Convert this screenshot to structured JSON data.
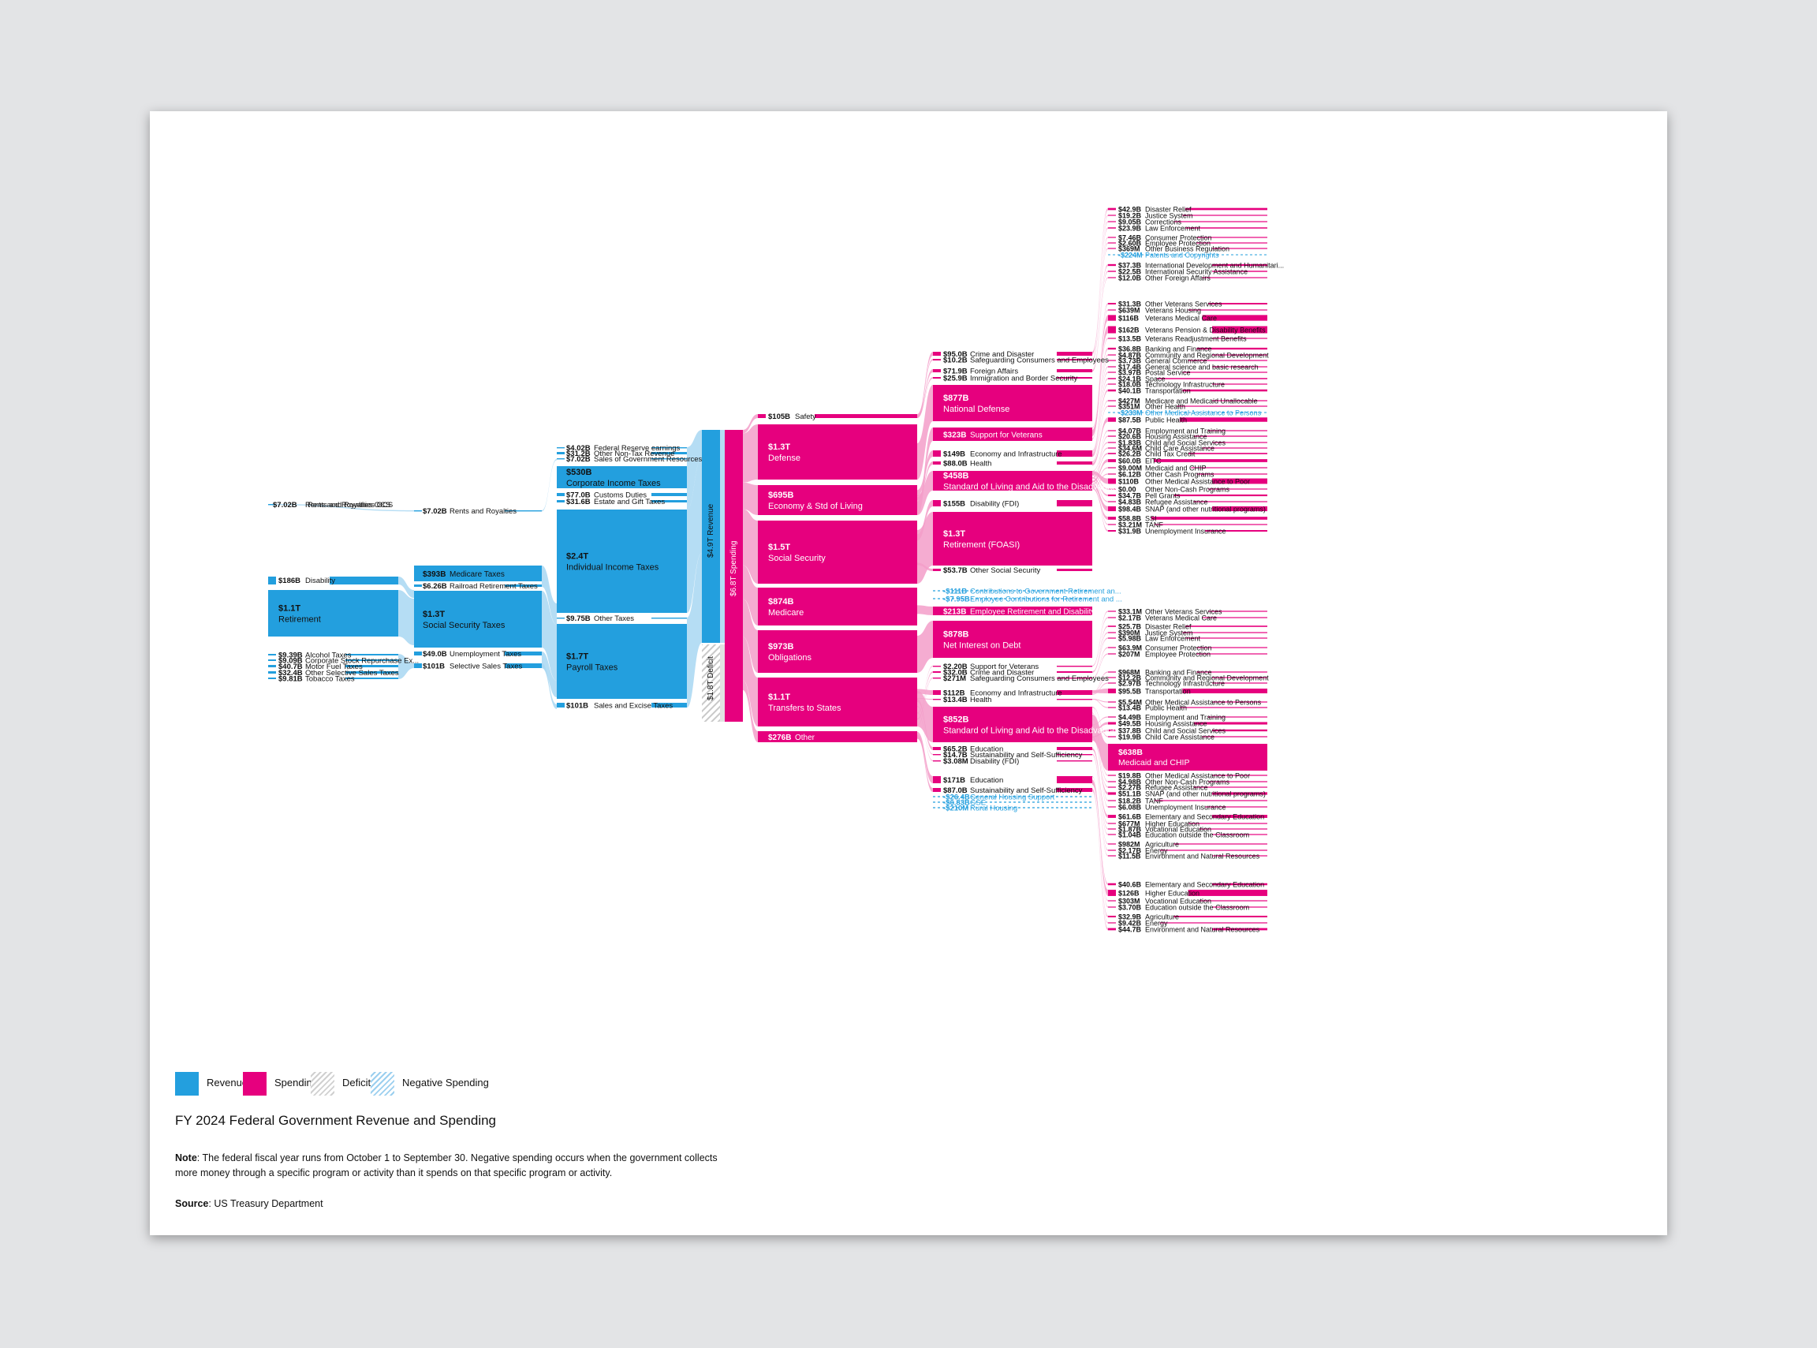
{
  "title": "FY 2024 Federal Government Revenue and Spending",
  "note_label": "Note",
  "note_text": ": The federal fiscal year runs from October 1 to September 30. Negative spending occurs when the government collects more money through a specific program or activity than it spends on that specific program or activity.",
  "source_label": "Source",
  "source_text": ": US Treasury Department",
  "legend": [
    {
      "label": "Revenue",
      "type": "rev"
    },
    {
      "label": "Spending",
      "type": "spend"
    },
    {
      "label": "Deficit",
      "type": "def"
    },
    {
      "label": "Negative Spending",
      "type": "neg"
    }
  ],
  "colors": {
    "revenue": "#239fde",
    "spending": "#e6007e",
    "revenue_flow": "#a8d7f2",
    "spending_flow": "#f39dc9",
    "deficit": "#cccccc",
    "negative": "#239fde"
  },
  "revenue": {
    "col0": [
      {
        "value": "$7.02B",
        "label": "Rents and Royalties OCS"
      },
      {
        "value": "$186B",
        "label": "Disability"
      },
      {
        "value": "$1.1T",
        "label": "Retirement"
      },
      {
        "value": "$9.39B",
        "label": "Alcohol Taxes"
      },
      {
        "value": "$9.09B",
        "label": "Corporate Stock Repurchase Ex..."
      },
      {
        "value": "$40.7B",
        "label": "Motor Fuel Taxes"
      },
      {
        "value": "$32.4B",
        "label": "Other Selective Sales Taxes"
      },
      {
        "value": "$9.81B",
        "label": "Tobacco Taxes"
      }
    ],
    "col1": [
      {
        "value": "$7.02B",
        "label": "Rents and Royalties"
      },
      {
        "value": "$393B",
        "label": "Medicare Taxes"
      },
      {
        "value": "$6.26B",
        "label": "Railroad Retirement Taxes"
      },
      {
        "value": "$1.3T",
        "label": "Social Security Taxes"
      },
      {
        "value": "$49.0B",
        "label": "Unemployment Taxes"
      },
      {
        "value": "$101B",
        "label": "Selective Sales Taxes"
      }
    ],
    "col2": [
      {
        "value": "$4.02B",
        "label": "Federal Reserve earnings"
      },
      {
        "value": "$31.2B",
        "label": "Other Non-Tax Revenue"
      },
      {
        "value": "$7.02B",
        "label": "Sales of Government Resources"
      },
      {
        "value": "$530B",
        "label": "Corporate Income Taxes"
      },
      {
        "value": "$77.0B",
        "label": "Customs Duties"
      },
      {
        "value": "$31.6B",
        "label": "Estate and Gift Taxes"
      },
      {
        "value": "$2.4T",
        "label": "Individual Income Taxes"
      },
      {
        "value": "$9.75B",
        "label": "Other Taxes"
      },
      {
        "value": "$1.7T",
        "label": "Payroll Taxes"
      },
      {
        "value": "$101B",
        "label": "Sales and Excise Taxes"
      }
    ],
    "total": "$4.9T Revenue",
    "deficit": "$1.8T Deficit",
    "spending_total": "$6.8T Spending"
  },
  "spending": {
    "col4": [
      {
        "value": "$105B",
        "label": "Safety"
      },
      {
        "value": "$1.3T",
        "label": "Defense"
      },
      {
        "value": "$695B",
        "label": "Economy & Std of Living"
      },
      {
        "value": "$1.5T",
        "label": "Social Security"
      },
      {
        "value": "$874B",
        "label": "Medicare"
      },
      {
        "value": "$973B",
        "label": "Obligations"
      },
      {
        "value": "$1.1T",
        "label": "Transfers to States"
      },
      {
        "value": "$276B",
        "label": "Other"
      }
    ],
    "col5": [
      {
        "value": "$95.0B",
        "label": "Crime and Disaster"
      },
      {
        "value": "$10.2B",
        "label": "Safeguarding Consumers and Employees"
      },
      {
        "value": "$71.9B",
        "label": "Foreign Affairs"
      },
      {
        "value": "$25.9B",
        "label": "Immigration and Border Security"
      },
      {
        "value": "$877B",
        "label": "National Defense"
      },
      {
        "value": "$323B",
        "label": "Support for Veterans"
      },
      {
        "value": "$149B",
        "label": "Economy and Infrastructure"
      },
      {
        "value": "$88.0B",
        "label": "Health"
      },
      {
        "value": "$458B",
        "label": "Standard of Living and Aid to the Disadvantaged"
      },
      {
        "value": "$155B",
        "label": "Disability (FDI)"
      },
      {
        "value": "$1.3T",
        "label": "Retirement (FOASI)"
      },
      {
        "value": "$53.7B",
        "label": "Other Social Security"
      },
      {
        "value": "-$111B",
        "label": "Contributions to Government Retirement an...",
        "neg": true
      },
      {
        "value": "-$7.95B",
        "label": "Employee Contributions for Retirement and ...",
        "neg": true
      },
      {
        "value": "$213B",
        "label": "Employee Retirement and Disability..."
      },
      {
        "value": "$878B",
        "label": "Net Interest on Debt"
      },
      {
        "value": "$2.20B",
        "label": "Support for Veterans"
      },
      {
        "value": "$32.0B",
        "label": "Crime and Disaster"
      },
      {
        "value": "$271M",
        "label": "Safeguarding Consumers and Employees"
      },
      {
        "value": "$112B",
        "label": "Economy and Infrastructure"
      },
      {
        "value": "$13.4B",
        "label": "Health"
      },
      {
        "value": "$852B",
        "label": "Standard of Living and Aid to the Disadvantaged"
      },
      {
        "value": "$65.2B",
        "label": "Education"
      },
      {
        "value": "$14.7B",
        "label": "Sustainability and Self-Sufficiency"
      },
      {
        "value": "$3.08M",
        "label": "Disability (FDI)"
      },
      {
        "value": "$171B",
        "label": "Education"
      },
      {
        "value": "$87.0B",
        "label": "Sustainability and Self-Sufficiency"
      },
      {
        "value": "-$26.4B",
        "label": "General Housing Support",
        "neg": true
      },
      {
        "value": "-$6.83B",
        "label": "GSE",
        "neg": true
      },
      {
        "value": "-$210M",
        "label": "Rural Housing",
        "neg": true
      }
    ],
    "col6": [
      {
        "value": "$42.9B",
        "label": "Disaster Relief"
      },
      {
        "value": "$19.2B",
        "label": "Justice System"
      },
      {
        "value": "$9.05B",
        "label": "Corrections"
      },
      {
        "value": "$23.9B",
        "label": "Law Enforcement"
      },
      {
        "value": "$7.46B",
        "label": "Consumer Protection"
      },
      {
        "value": "$2.60B",
        "label": "Employee Protection"
      },
      {
        "value": "$369M",
        "label": "Other Business Regulation"
      },
      {
        "value": "-$224M",
        "label": "Patents and Copyrights",
        "neg": true
      },
      {
        "value": "$37.3B",
        "label": "International Development and Humanitari..."
      },
      {
        "value": "$22.5B",
        "label": "International Security Assistance"
      },
      {
        "value": "$12.0B",
        "label": "Other Foreign Affairs"
      },
      {
        "value": "$31.3B",
        "label": "Other Veterans Services"
      },
      {
        "value": "$639M",
        "label": "Veterans Housing"
      },
      {
        "value": "$116B",
        "label": "Veterans Medical Care"
      },
      {
        "value": "$162B",
        "label": "Veterans Pension & Disability Benefits"
      },
      {
        "value": "$13.5B",
        "label": "Veterans Readjustment Benefits"
      },
      {
        "value": "$36.8B",
        "label": "Banking and Finance"
      },
      {
        "value": "$4.87B",
        "label": "Community and Regional Development"
      },
      {
        "value": "$3.73B",
        "label": "General Commerce"
      },
      {
        "value": "$17.4B",
        "label": "General science and basic research"
      },
      {
        "value": "$3.97B",
        "label": "Postal Service"
      },
      {
        "value": "$24.1B",
        "label": "Space"
      },
      {
        "value": "$18.0B",
        "label": "Technology Infrastructure"
      },
      {
        "value": "$40.1B",
        "label": "Transportation"
      },
      {
        "value": "$427M",
        "label": "Medicare and Medicaid Unallocable"
      },
      {
        "value": "$351M",
        "label": "Other Health"
      },
      {
        "value": "-$233M",
        "label": "Other Medical Assistance to Persons",
        "neg": true
      },
      {
        "value": "$87.5B",
        "label": "Public Health"
      },
      {
        "value": "$4.07B",
        "label": "Employment and Training"
      },
      {
        "value": "$20.6B",
        "label": "Housing Assistance"
      },
      {
        "value": "$1.83B",
        "label": "Child and Social Services"
      },
      {
        "value": "$34.6M",
        "label": "Child Care Assistance"
      },
      {
        "value": "$26.2B",
        "label": "Child Tax Credit"
      },
      {
        "value": "$60.0B",
        "label": "EITC"
      },
      {
        "value": "$9.00M",
        "label": "Medicaid and CHIP"
      },
      {
        "value": "$6.12B",
        "label": "Other Cash Programs"
      },
      {
        "value": "$110B",
        "label": "Other Medical Assistance to Poor"
      },
      {
        "value": "$0.00",
        "label": "Other Non-Cash Programs"
      },
      {
        "value": "$34.7B",
        "label": "Pell Grants"
      },
      {
        "value": "$4.83B",
        "label": "Refugee Assistance"
      },
      {
        "value": "$98.4B",
        "label": "SNAP (and other nutritional programs)"
      },
      {
        "value": "$58.8B",
        "label": "SSI"
      },
      {
        "value": "$3.21M",
        "label": "TANF"
      },
      {
        "value": "$31.9B",
        "label": "Unemployment Insurance"
      },
      {
        "value": "$33.1M",
        "label": "Other Veterans Services"
      },
      {
        "value": "$2.17B",
        "label": "Veterans Medical Care"
      },
      {
        "value": "$25.7B",
        "label": "Disaster Relief"
      },
      {
        "value": "$390M",
        "label": "Justice System"
      },
      {
        "value": "$5.98B",
        "label": "Law Enforcement"
      },
      {
        "value": "$63.9M",
        "label": "Consumer Protection"
      },
      {
        "value": "$207M",
        "label": "Employee Protection"
      },
      {
        "value": "$968M",
        "label": "Banking and Finance"
      },
      {
        "value": "$12.2B",
        "label": "Community and Regional Development"
      },
      {
        "value": "$2.97B",
        "label": "Technology Infrastructure"
      },
      {
        "value": "$95.5B",
        "label": "Transportation"
      },
      {
        "value": "$5.54M",
        "label": "Other Medical Assistance to Persons"
      },
      {
        "value": "$13.4B",
        "label": "Public Health"
      },
      {
        "value": "$4.49B",
        "label": "Employment and Training"
      },
      {
        "value": "$49.5B",
        "label": "Housing Assistance"
      },
      {
        "value": "$37.8B",
        "label": "Child and Social Services"
      },
      {
        "value": "$19.9B",
        "label": "Child Care Assistance"
      },
      {
        "value": "$638B",
        "label": "Medicaid and CHIP"
      },
      {
        "value": "$19.8B",
        "label": "Other Medical Assistance to Poor"
      },
      {
        "value": "$4.98B",
        "label": "Other Non-Cash Programs"
      },
      {
        "value": "$2.27B",
        "label": "Refugee Assistance"
      },
      {
        "value": "$51.1B",
        "label": "SNAP (and other nutritional programs)"
      },
      {
        "value": "$18.2B",
        "label": "TANF"
      },
      {
        "value": "$6.08B",
        "label": "Unemployment Insurance"
      },
      {
        "value": "$61.6B",
        "label": "Elementary and Secondary Education"
      },
      {
        "value": "$677M",
        "label": "Higher Education"
      },
      {
        "value": "$1.87B",
        "label": "Vocational Education"
      },
      {
        "value": "$1.04B",
        "label": "Education outside the Classroom"
      },
      {
        "value": "$982M",
        "label": "Agriculture"
      },
      {
        "value": "$2.17B",
        "label": "Energy"
      },
      {
        "value": "$11.5B",
        "label": "Environment and Natural Resources"
      },
      {
        "value": "$40.6B",
        "label": "Elementary and Secondary Education"
      },
      {
        "value": "$126B",
        "label": "Higher Education"
      },
      {
        "value": "$303M",
        "label": "Vocational Education"
      },
      {
        "value": "$3.70B",
        "label": "Education outside the Classroom"
      },
      {
        "value": "$32.9B",
        "label": "Agriculture"
      },
      {
        "value": "$9.42B",
        "label": "Energy"
      },
      {
        "value": "$44.7B",
        "label": "Environment and Natural Resources"
      }
    ]
  }
}
